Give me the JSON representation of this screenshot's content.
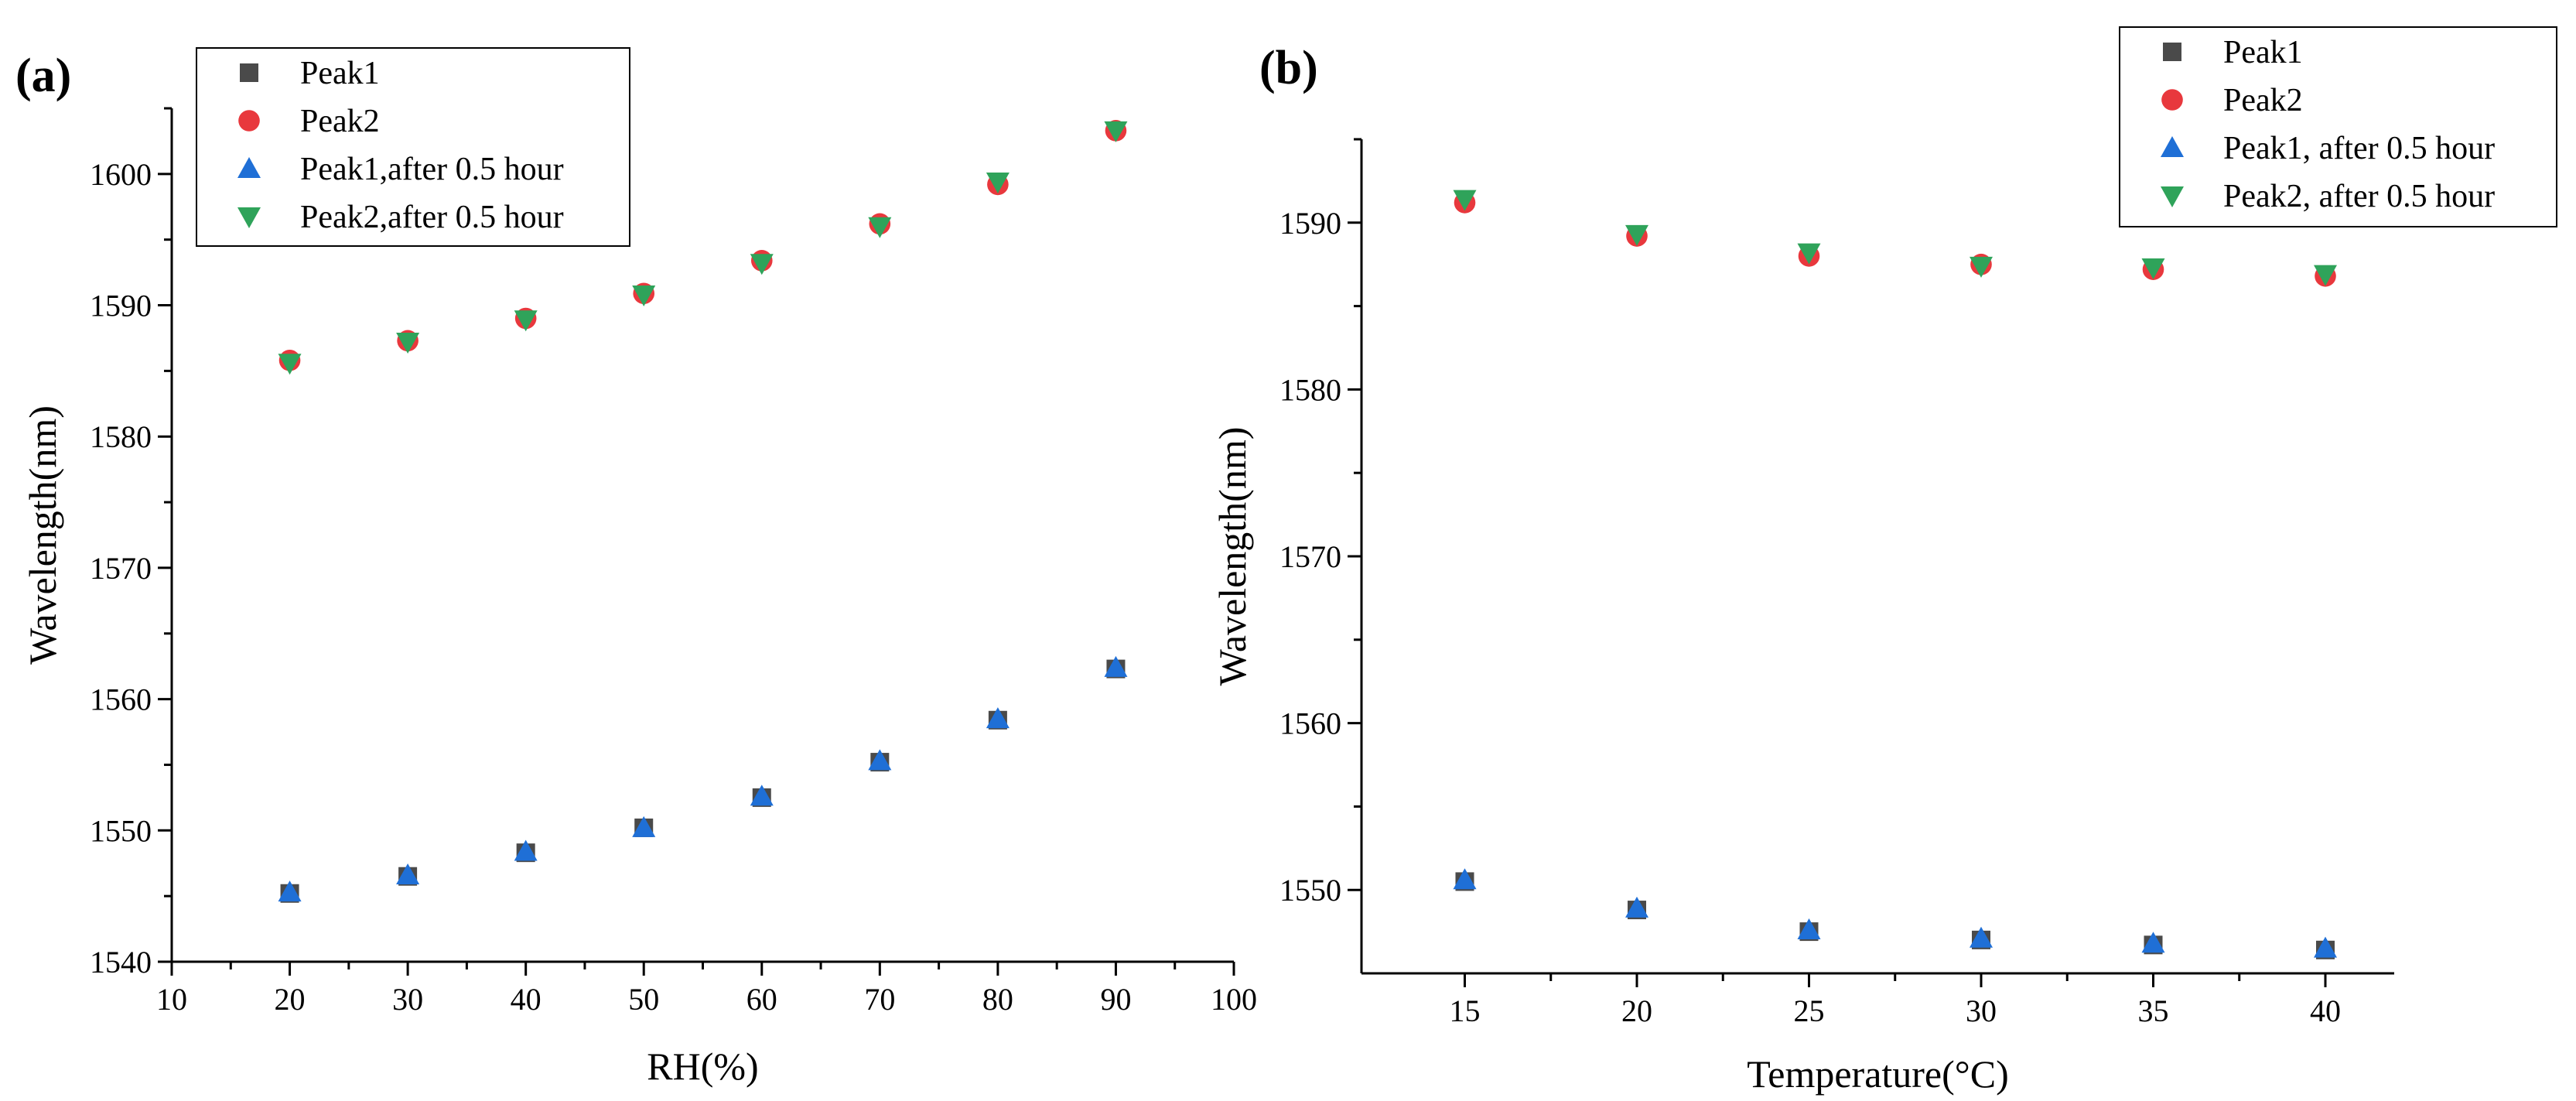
{
  "colors": {
    "peak1": "#4a4a4a",
    "peak2": "#e8383d",
    "peak1_after": "#1f6fd6",
    "peak2_after": "#2fa35a"
  },
  "chart_data": [
    {
      "type": "scatter",
      "panel_label": "(a)",
      "title": "",
      "xlabel": "RH(%)",
      "ylabel": "Wavelength(nm)",
      "xlim": [
        10,
        100
      ],
      "ylim": [
        1540,
        1605
      ],
      "xticks": [
        10,
        20,
        30,
        40,
        50,
        60,
        70,
        80,
        90,
        100
      ],
      "yticks": [
        1540,
        1550,
        1560,
        1570,
        1580,
        1590,
        1600
      ],
      "legend_position": "top-left",
      "x": [
        20,
        30,
        40,
        50,
        60,
        70,
        80,
        90
      ],
      "series": [
        {
          "name": "Peak1",
          "marker": "square",
          "color_key": "peak1",
          "values": [
            1545.2,
            1546.5,
            1548.3,
            1550.2,
            1552.5,
            1555.2,
            1558.4,
            1562.3
          ]
        },
        {
          "name": "Peak2",
          "marker": "circle",
          "color_key": "peak2",
          "values": [
            1585.8,
            1587.3,
            1589.0,
            1590.9,
            1593.4,
            1596.2,
            1599.2,
            1603.3
          ]
        },
        {
          "name": "Peak1,after 0.5 hour",
          "marker": "triangle-up",
          "color_key": "peak1_after",
          "values": [
            1545.3,
            1546.6,
            1548.4,
            1550.2,
            1552.6,
            1555.3,
            1558.5,
            1562.4
          ]
        },
        {
          "name": "Peak2,after 0.5 hour",
          "marker": "triangle-down",
          "color_key": "peak2_after",
          "values": [
            1585.6,
            1587.2,
            1588.9,
            1590.8,
            1593.2,
            1596.0,
            1599.4,
            1603.3
          ]
        }
      ]
    },
    {
      "type": "scatter",
      "panel_label": "(b)",
      "title": "",
      "xlabel": "Temperature(°C)",
      "ylabel": "Wavelength(nm)",
      "xlim": [
        12,
        42
      ],
      "ylim": [
        1545,
        1595
      ],
      "xticks": [
        15,
        20,
        25,
        30,
        35,
        40
      ],
      "yticks": [
        1550,
        1560,
        1570,
        1580,
        1590
      ],
      "legend_position": "top-right",
      "x": [
        15,
        20,
        25,
        30,
        35,
        40
      ],
      "series": [
        {
          "name": "Peak1",
          "marker": "square",
          "color_key": "peak1",
          "values": [
            1550.5,
            1548.8,
            1547.5,
            1547.0,
            1546.7,
            1546.4
          ]
        },
        {
          "name": "Peak2",
          "marker": "circle",
          "color_key": "peak2",
          "values": [
            1591.2,
            1589.2,
            1588.0,
            1587.5,
            1587.2,
            1586.8
          ]
        },
        {
          "name": "Peak1, after 0.5 hour",
          "marker": "triangle-up",
          "color_key": "peak1_after",
          "values": [
            1550.6,
            1548.9,
            1547.6,
            1547.1,
            1546.8,
            1546.5
          ]
        },
        {
          "name": "Peak2, after 0.5 hour",
          "marker": "triangle-down",
          "color_key": "peak2_after",
          "values": [
            1591.4,
            1589.3,
            1588.2,
            1587.4,
            1587.3,
            1586.9
          ]
        }
      ]
    }
  ]
}
